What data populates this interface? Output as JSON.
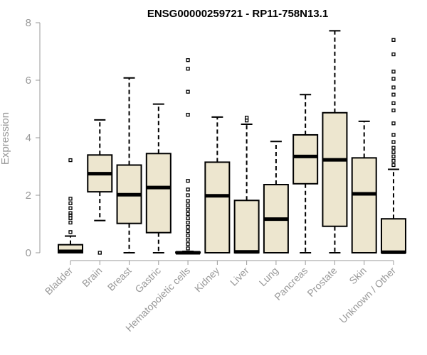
{
  "chart_data": {
    "type": "boxplot",
    "title": "ENSG00000259721 - RP11-758N13.1",
    "xlabel": "",
    "ylabel": "Expression",
    "ylim": [
      0,
      8
    ],
    "yticks": [
      0,
      2,
      4,
      6,
      8
    ],
    "colors": {
      "box_fill": "#ede6cf",
      "stroke": "#000000",
      "axis": "#999999"
    },
    "categories": [
      "Bladder",
      "Brain",
      "Breast",
      "Gastric",
      "Hematopoietic cells",
      "Kidney",
      "Liver",
      "Lung",
      "Pancreas",
      "Prostate",
      "Skin",
      "Unknown / Other"
    ],
    "boxes": [
      {
        "name": "Bladder",
        "q1": 0.0,
        "median": 0.05,
        "q3": 0.28,
        "whisker_low": 0.0,
        "whisker_high": 0.58,
        "outliers": [
          0.72,
          1.05,
          1.2,
          1.3,
          1.38,
          1.55,
          1.72,
          1.88,
          3.22
        ]
      },
      {
        "name": "Brain",
        "q1": 2.12,
        "median": 2.75,
        "q3": 3.4,
        "whisker_low": 1.12,
        "whisker_high": 4.62,
        "outliers": [
          0.0
        ]
      },
      {
        "name": "Breast",
        "q1": 1.02,
        "median": 2.02,
        "q3": 3.05,
        "whisker_low": 0.0,
        "whisker_high": 6.08,
        "outliers": []
      },
      {
        "name": "Gastric",
        "q1": 0.7,
        "median": 2.27,
        "q3": 3.45,
        "whisker_low": 0.0,
        "whisker_high": 5.17,
        "outliers": []
      },
      {
        "name": "Hematopoietic cells",
        "q1": 0.0,
        "median": 0.0,
        "q3": 0.02,
        "whisker_low": 0.0,
        "whisker_high": 0.05,
        "outliers": [
          0.15,
          0.3,
          0.45,
          0.6,
          0.75,
          0.9,
          1.05,
          1.2,
          1.35,
          1.5,
          1.65,
          1.8,
          2.0,
          2.2,
          2.5,
          4.8,
          5.6,
          6.4,
          6.7
        ]
      },
      {
        "name": "Kidney",
        "q1": 0.0,
        "median": 1.98,
        "q3": 3.15,
        "whisker_low": 0.0,
        "whisker_high": 4.72,
        "outliers": []
      },
      {
        "name": "Liver",
        "q1": 0.0,
        "median": 0.03,
        "q3": 1.82,
        "whisker_low": 0.0,
        "whisker_high": 4.47,
        "outliers": [
          4.6,
          4.7
        ]
      },
      {
        "name": "Lung",
        "q1": 0.0,
        "median": 1.17,
        "q3": 2.37,
        "whisker_low": 0.0,
        "whisker_high": 3.87,
        "outliers": []
      },
      {
        "name": "Pancreas",
        "q1": 2.4,
        "median": 3.35,
        "q3": 4.1,
        "whisker_low": 0.0,
        "whisker_high": 5.5,
        "outliers": []
      },
      {
        "name": "Prostate",
        "q1": 0.92,
        "median": 3.23,
        "q3": 4.87,
        "whisker_low": 0.0,
        "whisker_high": 7.72,
        "outliers": []
      },
      {
        "name": "Skin",
        "q1": 0.0,
        "median": 2.05,
        "q3": 3.3,
        "whisker_low": 0.0,
        "whisker_high": 4.57,
        "outliers": []
      },
      {
        "name": "Unknown / Other",
        "q1": 0.0,
        "median": 0.02,
        "q3": 1.18,
        "whisker_low": 0.0,
        "whisker_high": 2.9,
        "outliers": [
          3.05,
          3.2,
          3.35,
          3.5,
          3.65,
          3.85,
          4.1,
          4.5,
          4.95,
          5.2,
          5.5,
          5.75,
          6.05,
          6.3,
          6.9,
          7.4
        ]
      }
    ]
  }
}
